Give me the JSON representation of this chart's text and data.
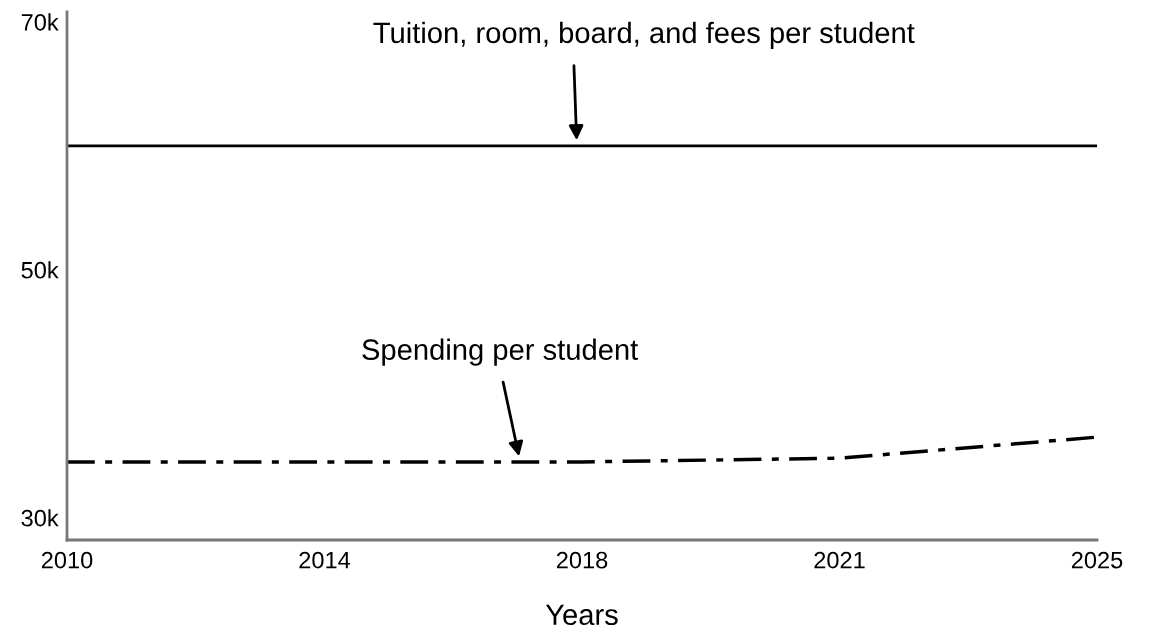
{
  "chart_data": {
    "type": "line",
    "xlabel": "Years",
    "categories": [
      "2010",
      "2014",
      "2018",
      "2021",
      "2025"
    ],
    "ylim": [
      28200,
      70800
    ],
    "yticks": [
      {
        "value": 30000,
        "label": "30k"
      },
      {
        "value": 50000,
        "label": "50k"
      },
      {
        "value": 70000,
        "label": "70k"
      }
    ],
    "series": [
      {
        "color": "#000000",
        "line_style": "solid",
        "values": [
          60000,
          60000,
          60000,
          60000,
          60000
        ]
      },
      {
        "color": "#000000",
        "line_style": "dashdot",
        "values": [
          34500,
          34500,
          34500,
          34800,
          36500
        ]
      }
    ],
    "annotations": [
      "Tuition, room, board, and fees per student",
      "Spending per student"
    ],
    "grid": false,
    "legend": false
  }
}
